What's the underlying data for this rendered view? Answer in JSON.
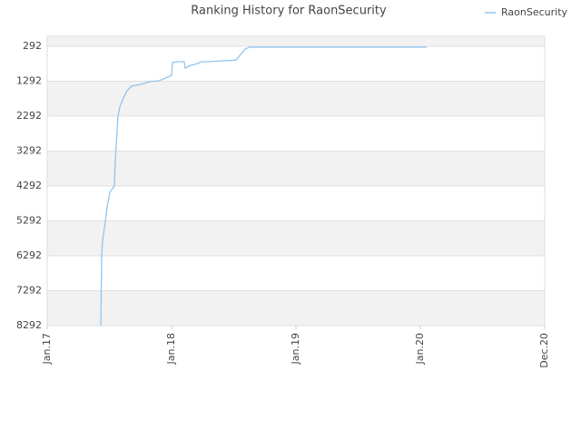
{
  "chart_data": {
    "type": "line",
    "title": "Ranking History for RaonSecurity",
    "series": [
      {
        "name": "RaonSecurity",
        "color": "#90c4f0",
        "x": [
          2017.431,
          2017.438,
          2017.445,
          2017.467,
          2017.482,
          2017.504,
          2017.54,
          2017.547,
          2017.555,
          2017.569,
          2017.584,
          2017.606,
          2017.642,
          2017.679,
          2017.752,
          2017.825,
          2017.898,
          2017.971,
          2018.0,
          2018.007,
          2018.044,
          2018.102,
          2018.109,
          2018.153,
          2018.19,
          2018.241,
          2018.299,
          2018.409,
          2018.518,
          2018.555,
          2018.591,
          2018.628,
          2018.737,
          2020.051
        ],
        "values": [
          8292,
          6292,
          5850,
          5330,
          4890,
          4470,
          4290,
          3640,
          3120,
          2292,
          2030,
          1825,
          1565,
          1435,
          1383,
          1305,
          1280,
          1175,
          1123,
          760,
          734,
          734,
          915,
          837,
          810,
          734,
          734,
          708,
          690,
          526,
          370,
          318,
          318,
          318
        ]
      }
    ],
    "xlim": [
      2017,
      2021
    ],
    "xticks": [
      {
        "value": 2017,
        "label": "Jan.17"
      },
      {
        "value": 2018,
        "label": "Jan.18"
      },
      {
        "value": 2019,
        "label": "Jan.19"
      },
      {
        "value": 2020,
        "label": "Jan.20"
      },
      {
        "value": 2021,
        "label": "Dec.20"
      }
    ],
    "ylim": [
      8292,
      6
    ],
    "yticks": [
      292,
      1292,
      2292,
      3292,
      4292,
      5292,
      6292,
      7292,
      8292
    ],
    "grid": true,
    "legend": "top-right"
  }
}
